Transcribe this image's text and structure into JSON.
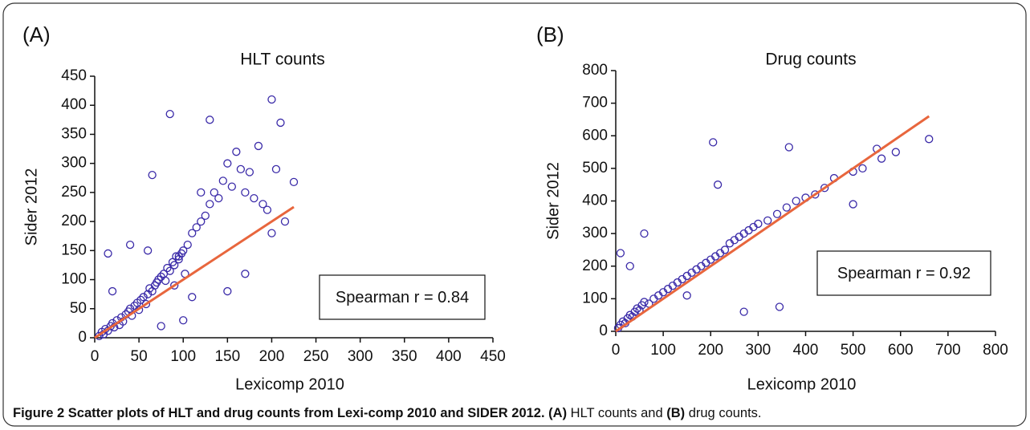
{
  "chart_data": [
    {
      "type": "scatter",
      "panel": "(A)",
      "title": "HLT counts",
      "x_label": "Lexicomp 2010",
      "y_label": "Sider 2012",
      "xlim": [
        0,
        450
      ],
      "ylim": [
        0,
        450
      ],
      "xticks": [
        0,
        50,
        100,
        150,
        200,
        250,
        300,
        350,
        400,
        450
      ],
      "yticks": [
        0,
        50,
        100,
        150,
        200,
        250,
        300,
        350,
        400,
        450
      ],
      "series": [
        {
          "color": "#3a2aa8",
          "x": [
            5,
            8,
            10,
            12,
            15,
            18,
            20,
            22,
            25,
            28,
            30,
            32,
            35,
            38,
            40,
            42,
            45,
            48,
            50,
            52,
            55,
            58,
            60,
            62,
            65,
            68,
            70,
            72,
            75,
            78,
            80,
            82,
            85,
            88,
            90,
            92,
            95,
            98,
            100,
            102,
            105,
            110,
            115,
            120,
            125,
            130,
            135,
            140,
            145,
            150,
            155,
            160,
            165,
            170,
            175,
            180,
            185,
            190,
            195,
            200,
            205,
            210,
            215,
            225,
            85,
            130,
            200,
            110,
            60,
            20,
            15,
            40,
            65,
            150,
            100,
            120,
            90,
            170,
            95,
            75
          ],
          "values": [
            3,
            10,
            6,
            15,
            12,
            20,
            25,
            18,
            30,
            22,
            35,
            28,
            40,
            45,
            50,
            38,
            55,
            60,
            48,
            65,
            70,
            58,
            75,
            85,
            80,
            90,
            95,
            100,
            105,
            110,
            98,
            120,
            115,
            130,
            125,
            140,
            135,
            145,
            150,
            110,
            160,
            180,
            190,
            200,
            210,
            230,
            250,
            240,
            270,
            300,
            260,
            320,
            290,
            250,
            285,
            240,
            330,
            230,
            220,
            410,
            290,
            370,
            200,
            268,
            385,
            375,
            180,
            70,
            150,
            80,
            145,
            160,
            280,
            80,
            30,
            250,
            90,
            110,
            140,
            20
          ]
        }
      ],
      "fit_line": {
        "color": "#e8663d",
        "x": [
          0,
          225
        ],
        "values": [
          0,
          225
        ]
      },
      "annotation": "Spearman r = 0.84"
    },
    {
      "type": "scatter",
      "panel": "(B)",
      "title": "Drug counts",
      "x_label": "Lexicomp 2010",
      "y_label": "Sider 2012",
      "xlim": [
        0,
        800
      ],
      "ylim": [
        0,
        800
      ],
      "xticks": [
        0,
        100,
        200,
        300,
        400,
        500,
        600,
        700,
        800
      ],
      "yticks": [
        0,
        100,
        200,
        300,
        400,
        500,
        600,
        700,
        800
      ],
      "series": [
        {
          "color": "#3a2aa8",
          "x": [
            5,
            10,
            15,
            20,
            25,
            30,
            35,
            40,
            45,
            50,
            55,
            60,
            70,
            80,
            90,
            100,
            110,
            120,
            130,
            140,
            150,
            160,
            170,
            180,
            190,
            200,
            210,
            220,
            230,
            240,
            250,
            260,
            270,
            280,
            290,
            300,
            320,
            340,
            360,
            380,
            400,
            420,
            440,
            460,
            500,
            520,
            550,
            560,
            590,
            660,
            205,
            215,
            270,
            345,
            60,
            30,
            10,
            150,
            365,
            500
          ],
          "values": [
            10,
            20,
            30,
            25,
            40,
            50,
            45,
            60,
            70,
            65,
            80,
            90,
            85,
            100,
            110,
            120,
            130,
            140,
            150,
            160,
            170,
            180,
            190,
            200,
            210,
            220,
            230,
            240,
            250,
            270,
            280,
            290,
            300,
            310,
            320,
            330,
            340,
            360,
            380,
            400,
            410,
            420,
            440,
            470,
            490,
            500,
            560,
            530,
            550,
            590,
            580,
            450,
            60,
            75,
            300,
            200,
            240,
            110,
            565,
            390
          ]
        }
      ],
      "fit_line": {
        "color": "#e8663d",
        "x": [
          0,
          660
        ],
        "values": [
          0,
          660
        ]
      },
      "annotation": "Spearman r = 0.92"
    }
  ],
  "caption": [
    {
      "text": "Figure 2 Scatter plots of HLT and drug counts from Lexi-comp 2010 and SIDER 2012.",
      "bold": true
    },
    {
      "text": " (A)",
      "bold": true
    },
    {
      "text": " HLT counts and ",
      "bold": false
    },
    {
      "text": "(B)",
      "bold": true
    },
    {
      "text": " drug counts.",
      "bold": false
    }
  ]
}
